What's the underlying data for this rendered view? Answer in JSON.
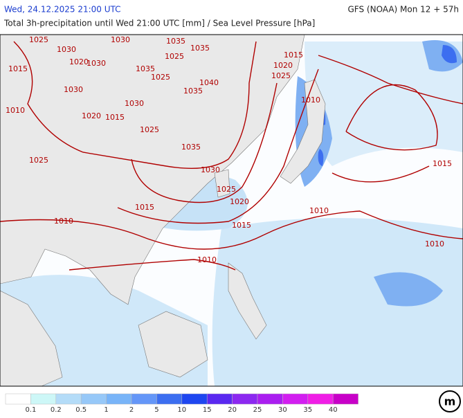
{
  "header": {
    "datetime": "Wed, 24.12.2025 21:00 UTC",
    "model": "GFS (NOAA) Mon 12 + 57h",
    "subtitle": "Total 3h-precipitation until Wed 21:00 UTC [mm] / Sea Level Pressure [hPa]"
  },
  "isobar_labels": [
    "1025",
    "1030",
    "1030",
    "1035",
    "1025",
    "1030",
    "1015",
    "1020",
    "1035",
    "1035",
    "1040",
    "1025",
    "1025",
    "1035",
    "1030",
    "1030",
    "1015",
    "1020",
    "1025",
    "1025",
    "1010",
    "1035",
    "1030",
    "1025",
    "1020",
    "1015",
    "1015",
    "1010",
    "1010",
    "1020",
    "1015",
    "1010",
    "1010",
    "1010",
    "1015"
  ],
  "legend": {
    "colors": [
      "#ffffff",
      "#cdf7f7",
      "#b4dcf8",
      "#96c8f8",
      "#78b4f8",
      "#6496f8",
      "#3c6ef0",
      "#1e46f0",
      "#5a28f0",
      "#8c28f0",
      "#aa1ef0",
      "#d21ef0",
      "#f01ee6",
      "#c800c8"
    ],
    "labels": [
      0.1,
      0.2,
      0.5,
      1,
      2,
      5,
      10,
      15,
      20,
      25,
      30,
      35,
      40
    ]
  }
}
